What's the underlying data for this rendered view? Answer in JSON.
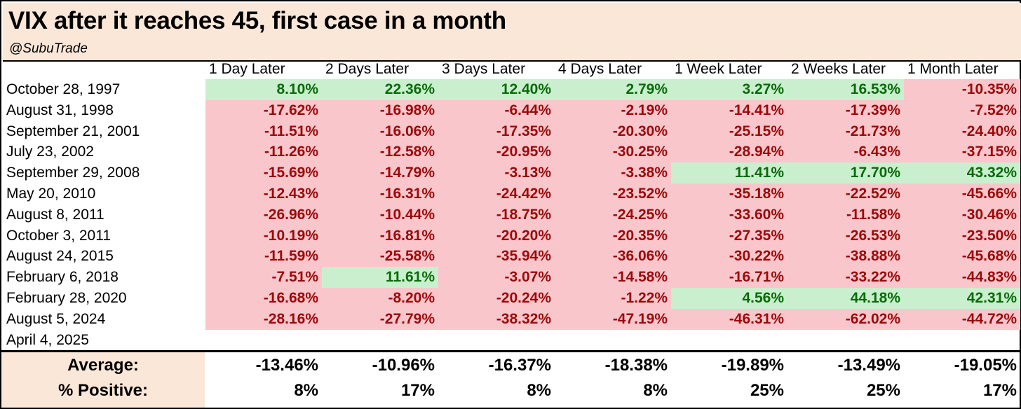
{
  "header": {
    "title": "VIX after it reaches 45, first case in a month",
    "subtitle": "@SubuTrade"
  },
  "colors": {
    "header_bg": "#fbe7d8",
    "negative_bg": "#f9c6cc",
    "negative_text": "#9a0a0a",
    "positive_bg": "#c9efce",
    "positive_text": "#0a6a0a"
  },
  "chart_data": {
    "type": "table",
    "title": "VIX after it reaches 45, first case in a month",
    "subtitle": "@SubuTrade",
    "columns": [
      "1 Day Later",
      "2 Days Later",
      "3 Days Later",
      "4 Days Later",
      "1 Week Later",
      "2 Weeks Later",
      "1 Month Later"
    ],
    "rows": [
      {
        "date": "October 28, 1997",
        "values": [
          "8.10%",
          "22.36%",
          "12.40%",
          "2.79%",
          "3.27%",
          "16.53%",
          "-10.35%"
        ]
      },
      {
        "date": "August 31, 1998",
        "values": [
          "-17.62%",
          "-16.98%",
          "-6.44%",
          "-2.19%",
          "-14.41%",
          "-17.39%",
          "-7.52%"
        ]
      },
      {
        "date": "September 21, 2001",
        "values": [
          "-11.51%",
          "-16.06%",
          "-17.35%",
          "-20.30%",
          "-25.15%",
          "-21.73%",
          "-24.40%"
        ]
      },
      {
        "date": "July 23, 2002",
        "values": [
          "-11.26%",
          "-12.58%",
          "-20.95%",
          "-30.25%",
          "-28.94%",
          "-6.43%",
          "-37.15%"
        ]
      },
      {
        "date": "September 29, 2008",
        "values": [
          "-15.69%",
          "-14.79%",
          "-3.13%",
          "-3.38%",
          "11.41%",
          "17.70%",
          "43.32%"
        ]
      },
      {
        "date": "May 20, 2010",
        "values": [
          "-12.43%",
          "-16.31%",
          "-24.42%",
          "-23.52%",
          "-35.18%",
          "-22.52%",
          "-45.66%"
        ]
      },
      {
        "date": "August 8, 2011",
        "values": [
          "-26.96%",
          "-10.44%",
          "-18.75%",
          "-24.25%",
          "-33.60%",
          "-11.58%",
          "-30.46%"
        ]
      },
      {
        "date": "October 3, 2011",
        "values": [
          "-10.19%",
          "-16.81%",
          "-20.20%",
          "-20.35%",
          "-27.35%",
          "-26.53%",
          "-23.50%"
        ]
      },
      {
        "date": "August 24, 2015",
        "values": [
          "-11.59%",
          "-25.58%",
          "-35.94%",
          "-36.06%",
          "-30.22%",
          "-38.88%",
          "-45.68%"
        ]
      },
      {
        "date": "February 6, 2018",
        "values": [
          "-7.51%",
          "11.61%",
          "-3.07%",
          "-14.58%",
          "-16.71%",
          "-33.22%",
          "-44.83%"
        ]
      },
      {
        "date": "February 28, 2020",
        "values": [
          "-16.68%",
          "-8.20%",
          "-20.24%",
          "-1.22%",
          "4.56%",
          "44.18%",
          "42.31%"
        ]
      },
      {
        "date": "August 5, 2024",
        "values": [
          "-28.16%",
          "-27.79%",
          "-38.32%",
          "-47.19%",
          "-46.31%",
          "-62.02%",
          "-44.72%"
        ]
      },
      {
        "date": "April 4, 2025",
        "values": []
      }
    ],
    "summary": [
      {
        "label": "Average:",
        "values": [
          "-13.46%",
          "-10.96%",
          "-16.37%",
          "-18.38%",
          "-19.89%",
          "-13.49%",
          "-19.05%"
        ]
      },
      {
        "label": "% Positive:",
        "values": [
          "8%",
          "17%",
          "8%",
          "8%",
          "25%",
          "25%",
          "17%"
        ]
      }
    ]
  }
}
